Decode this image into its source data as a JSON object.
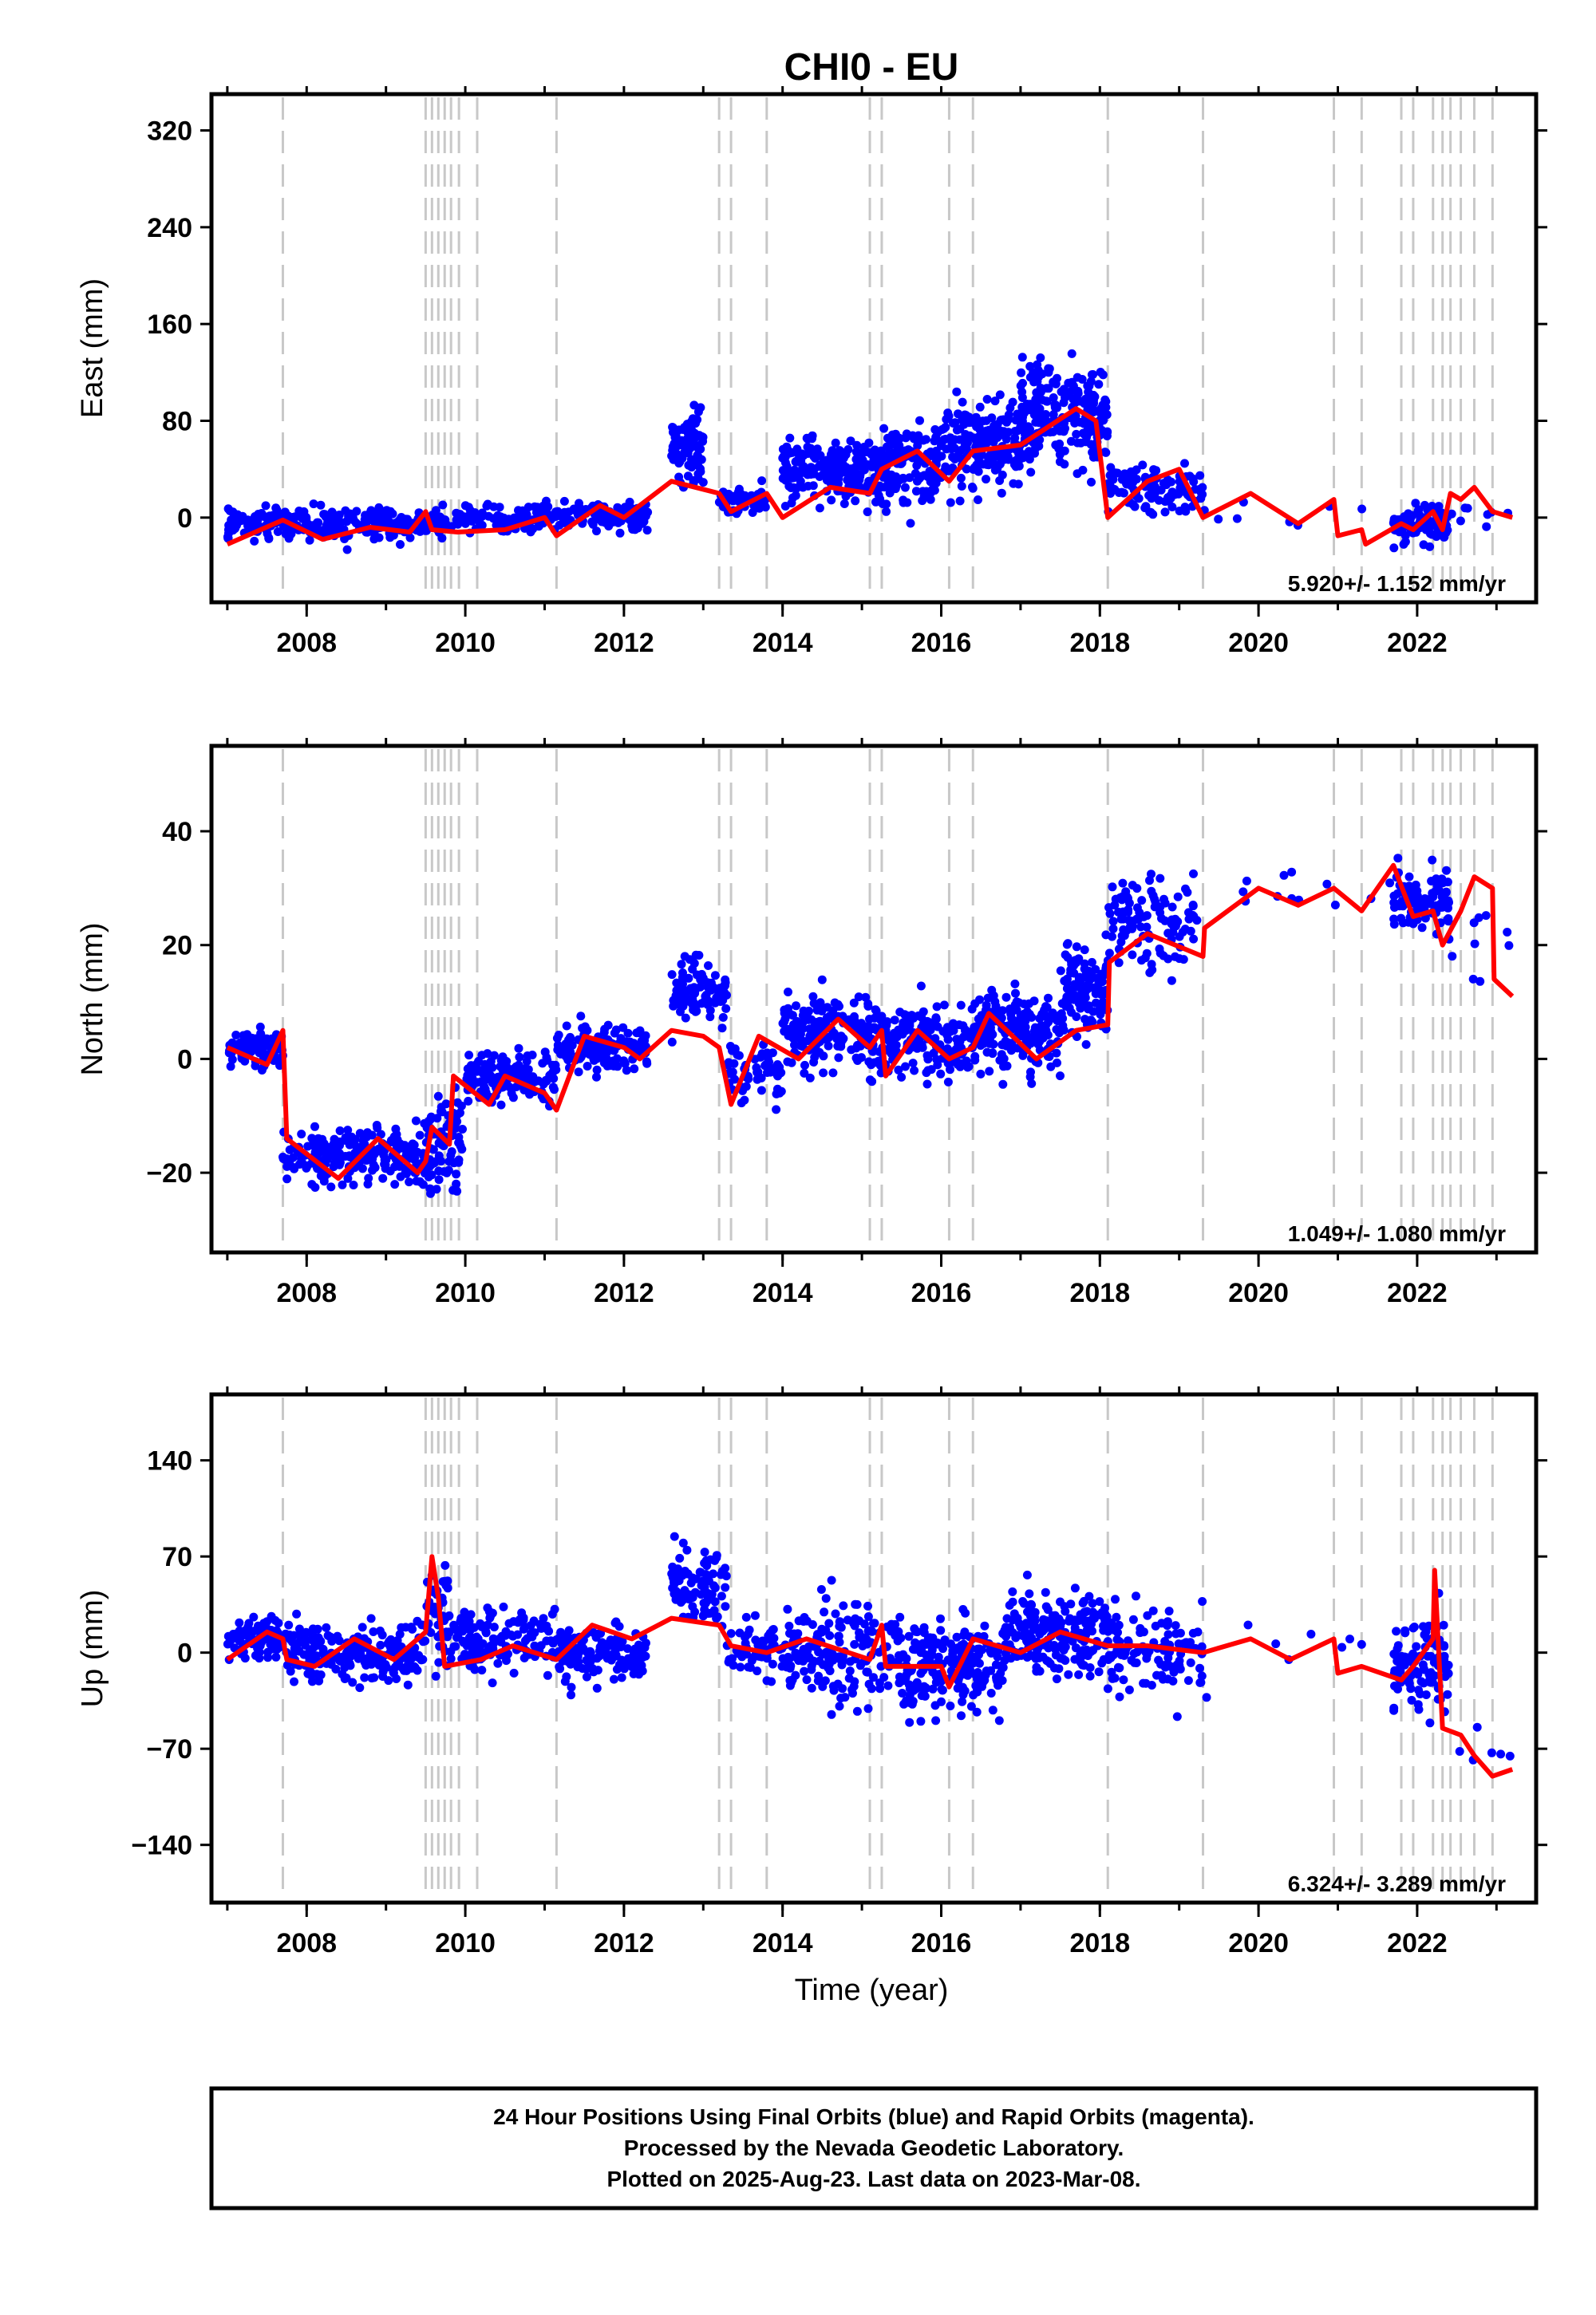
{
  "chart_data": {
    "title": "CHI0 - EU",
    "type": "scatter",
    "x_ticks": [
      2008,
      2010,
      2012,
      2014,
      2016,
      2018,
      2020,
      2022
    ],
    "xlim": [
      2006.8,
      2023.5
    ],
    "xlabel": "Time (year)",
    "breaks": [
      2007.7,
      2009.5,
      2009.58,
      2009.66,
      2009.74,
      2009.82,
      2009.92,
      2010.15,
      2011.15,
      2013.2,
      2013.35,
      2013.8,
      2015.1,
      2015.25,
      2016.1,
      2016.4,
      2018.1,
      2019.3,
      2020.95,
      2021.3,
      2021.8,
      2021.95,
      2022.2,
      2022.32,
      2022.42,
      2022.55,
      2022.72,
      2022.95
    ],
    "colors": {
      "data": "#0000ff",
      "model": "#ff0000",
      "breaks": "#c8c8c8"
    },
    "series_note": "24 Hour Positions Using Final Orbits (blue) and Rapid Orbits (magenta).",
    "panels": [
      {
        "ylabel": "East (mm)",
        "ylim": [
          -70,
          350
        ],
        "y_ticks": [
          320,
          240,
          160,
          80,
          0
        ],
        "y_tick_labels": [
          "320",
          "240",
          "160",
          "80",
          "0"
        ],
        "rate": "5.920+/- 1.152 mm/yr",
        "model": [
          [
            2007.0,
            -22
          ],
          [
            2007.7,
            -2
          ],
          [
            2008.2,
            -18
          ],
          [
            2008.8,
            -8
          ],
          [
            2009.3,
            -12
          ],
          [
            2009.5,
            5
          ],
          [
            2009.58,
            -10
          ],
          [
            2009.9,
            -12
          ],
          [
            2010.5,
            -10
          ],
          [
            2011.0,
            0
          ],
          [
            2011.15,
            -15
          ],
          [
            2011.7,
            10
          ],
          [
            2012.0,
            0
          ],
          [
            2012.6,
            30
          ],
          [
            2013.2,
            20
          ],
          [
            2013.35,
            5
          ],
          [
            2013.8,
            20
          ],
          [
            2014.0,
            0
          ],
          [
            2014.6,
            25
          ],
          [
            2015.1,
            20
          ],
          [
            2015.25,
            40
          ],
          [
            2015.7,
            55
          ],
          [
            2016.1,
            30
          ],
          [
            2016.4,
            55
          ],
          [
            2017.0,
            60
          ],
          [
            2017.7,
            90
          ],
          [
            2017.95,
            80
          ],
          [
            2018.1,
            0
          ],
          [
            2018.6,
            30
          ],
          [
            2019.0,
            40
          ],
          [
            2019.3,
            0
          ],
          [
            2019.9,
            20
          ],
          [
            2020.5,
            -5
          ],
          [
            2020.95,
            15
          ],
          [
            2021.0,
            -15
          ],
          [
            2021.3,
            -10
          ],
          [
            2021.35,
            -22
          ],
          [
            2021.8,
            -5
          ],
          [
            2021.95,
            -10
          ],
          [
            2022.2,
            5
          ],
          [
            2022.32,
            -10
          ],
          [
            2022.42,
            20
          ],
          [
            2022.55,
            15
          ],
          [
            2022.72,
            25
          ],
          [
            2022.95,
            5
          ],
          [
            2023.2,
            0
          ]
        ],
        "clusters": [
          [
            2007.0,
            2009.8,
            -5,
            18,
            280
          ],
          [
            2009.8,
            2012.3,
            0,
            15,
            220
          ],
          [
            2012.6,
            2013.0,
            60,
            35,
            90
          ],
          [
            2013.2,
            2013.8,
            15,
            15,
            50
          ],
          [
            2014.0,
            2015.0,
            40,
            35,
            170
          ],
          [
            2015.0,
            2016.0,
            45,
            40,
            180
          ],
          [
            2016.0,
            2017.0,
            60,
            45,
            200
          ],
          [
            2017.0,
            2018.1,
            85,
            55,
            220
          ],
          [
            2018.1,
            2019.3,
            25,
            25,
            110
          ],
          [
            2019.3,
            2021.7,
            5,
            15,
            8
          ],
          [
            2021.7,
            2022.4,
            -5,
            20,
            90
          ],
          [
            2022.4,
            2023.2,
            5,
            15,
            8
          ]
        ]
      },
      {
        "ylabel": "North (mm)",
        "ylim": [
          -34,
          55
        ],
        "y_ticks": [
          40,
          20,
          0,
          -20
        ],
        "y_tick_labels": [
          "40",
          "20",
          "0",
          "−20"
        ],
        "rate": "1.049+/- 1.080 mm/yr",
        "model": [
          [
            2007.0,
            2
          ],
          [
            2007.5,
            -1
          ],
          [
            2007.7,
            5
          ],
          [
            2007.75,
            -14
          ],
          [
            2008.4,
            -21
          ],
          [
            2008.9,
            -14
          ],
          [
            2009.4,
            -20
          ],
          [
            2009.5,
            -18
          ],
          [
            2009.58,
            -12
          ],
          [
            2009.8,
            -15
          ],
          [
            2009.85,
            -3
          ],
          [
            2010.3,
            -8
          ],
          [
            2010.5,
            -3
          ],
          [
            2011.0,
            -6
          ],
          [
            2011.15,
            -9
          ],
          [
            2011.5,
            4
          ],
          [
            2012.0,
            2
          ],
          [
            2012.2,
            0
          ],
          [
            2012.6,
            5
          ],
          [
            2013.0,
            4
          ],
          [
            2013.2,
            2
          ],
          [
            2013.35,
            -8
          ],
          [
            2013.7,
            4
          ],
          [
            2014.2,
            0
          ],
          [
            2014.7,
            7
          ],
          [
            2015.1,
            2
          ],
          [
            2015.25,
            5
          ],
          [
            2015.3,
            -3
          ],
          [
            2015.7,
            5
          ],
          [
            2016.1,
            0
          ],
          [
            2016.4,
            2
          ],
          [
            2016.6,
            8
          ],
          [
            2017.2,
            0
          ],
          [
            2017.7,
            5
          ],
          [
            2018.1,
            6
          ],
          [
            2018.12,
            17
          ],
          [
            2018.6,
            22
          ],
          [
            2019.3,
            18
          ],
          [
            2019.32,
            23
          ],
          [
            2020.0,
            30
          ],
          [
            2020.5,
            27
          ],
          [
            2020.95,
            30
          ],
          [
            2021.3,
            26
          ],
          [
            2021.7,
            34
          ],
          [
            2021.95,
            25
          ],
          [
            2022.2,
            26
          ],
          [
            2022.32,
            20
          ],
          [
            2022.55,
            26
          ],
          [
            2022.72,
            32
          ],
          [
            2022.95,
            30
          ],
          [
            2022.97,
            14
          ],
          [
            2023.2,
            11
          ]
        ],
        "clusters": [
          [
            2007.0,
            2007.7,
            2,
            4,
            80
          ],
          [
            2007.7,
            2009.5,
            -17,
            6,
            220
          ],
          [
            2009.5,
            2010.0,
            -15,
            10,
            80
          ],
          [
            2010.0,
            2011.15,
            -3,
            6,
            140
          ],
          [
            2011.15,
            2012.3,
            2,
            5,
            140
          ],
          [
            2012.6,
            2013.3,
            12,
            8,
            90
          ],
          [
            2013.3,
            2014.0,
            -2,
            6,
            60
          ],
          [
            2014.0,
            2015.1,
            5,
            8,
            160
          ],
          [
            2015.1,
            2016.4,
            3,
            8,
            180
          ],
          [
            2016.4,
            2017.5,
            5,
            9,
            180
          ],
          [
            2017.5,
            2018.1,
            12,
            10,
            120
          ],
          [
            2018.1,
            2019.3,
            24,
            10,
            110
          ],
          [
            2019.3,
            2021.7,
            30,
            4,
            12
          ],
          [
            2021.7,
            2022.4,
            28,
            7,
            100
          ],
          [
            2022.4,
            2023.2,
            20,
            12,
            10
          ]
        ]
      },
      {
        "ylabel": "Up (mm)",
        "ylim": [
          -182,
          188
        ],
        "y_ticks": [
          140,
          70,
          0,
          -70,
          -140
        ],
        "y_tick_labels": [
          "140",
          "70",
          "0",
          "−70",
          "−140"
        ],
        "rate": "6.324+/- 3.289 mm/yr",
        "model": [
          [
            2007.0,
            -5
          ],
          [
            2007.5,
            15
          ],
          [
            2007.7,
            10
          ],
          [
            2007.75,
            -5
          ],
          [
            2008.1,
            -10
          ],
          [
            2008.6,
            10
          ],
          [
            2009.1,
            -5
          ],
          [
            2009.5,
            15
          ],
          [
            2009.58,
            70
          ],
          [
            2009.66,
            40
          ],
          [
            2009.74,
            -10
          ],
          [
            2010.2,
            -5
          ],
          [
            2010.6,
            5
          ],
          [
            2011.15,
            -5
          ],
          [
            2011.6,
            20
          ],
          [
            2012.1,
            10
          ],
          [
            2012.6,
            25
          ],
          [
            2013.2,
            20
          ],
          [
            2013.35,
            5
          ],
          [
            2013.8,
            0
          ],
          [
            2014.3,
            10
          ],
          [
            2015.1,
            -5
          ],
          [
            2015.25,
            20
          ],
          [
            2015.3,
            -10
          ],
          [
            2016.0,
            -10
          ],
          [
            2016.1,
            -25
          ],
          [
            2016.4,
            10
          ],
          [
            2017.0,
            0
          ],
          [
            2017.5,
            15
          ],
          [
            2018.1,
            5
          ],
          [
            2018.6,
            5
          ],
          [
            2019.3,
            0
          ],
          [
            2019.9,
            10
          ],
          [
            2020.4,
            -5
          ],
          [
            2020.95,
            10
          ],
          [
            2021.0,
            -15
          ],
          [
            2021.3,
            -10
          ],
          [
            2021.8,
            -20
          ],
          [
            2021.95,
            -10
          ],
          [
            2022.2,
            10
          ],
          [
            2022.22,
            60
          ],
          [
            2022.32,
            -55
          ],
          [
            2022.55,
            -60
          ],
          [
            2022.72,
            -75
          ],
          [
            2022.95,
            -90
          ],
          [
            2023.2,
            -85
          ]
        ],
        "clusters": [
          [
            2007.0,
            2007.7,
            10,
            18,
            80
          ],
          [
            2007.7,
            2009.5,
            0,
            25,
            220
          ],
          [
            2009.5,
            2009.8,
            30,
            50,
            50
          ],
          [
            2009.8,
            2011.15,
            10,
            30,
            140
          ],
          [
            2011.15,
            2012.3,
            0,
            25,
            140
          ],
          [
            2012.6,
            2013.3,
            50,
            35,
            90
          ],
          [
            2013.3,
            2014.0,
            0,
            25,
            60
          ],
          [
            2014.0,
            2015.5,
            0,
            45,
            180
          ],
          [
            2015.5,
            2016.8,
            -10,
            45,
            200
          ],
          [
            2016.8,
            2018.1,
            15,
            40,
            200
          ],
          [
            2018.1,
            2019.3,
            0,
            40,
            110
          ],
          [
            2019.3,
            2021.7,
            0,
            50,
            8
          ],
          [
            2021.7,
            2022.4,
            -10,
            40,
            100
          ],
          [
            2022.4,
            2023.2,
            -80,
            50,
            6
          ]
        ]
      }
    ]
  },
  "footer": {
    "line1": "24 Hour Positions Using Final Orbits (blue) and Rapid Orbits (magenta).",
    "line2": "Processed by the Nevada Geodetic Laboratory.",
    "line3": "Plotted on 2025-Aug-23. Last data on 2023-Mar-08."
  }
}
